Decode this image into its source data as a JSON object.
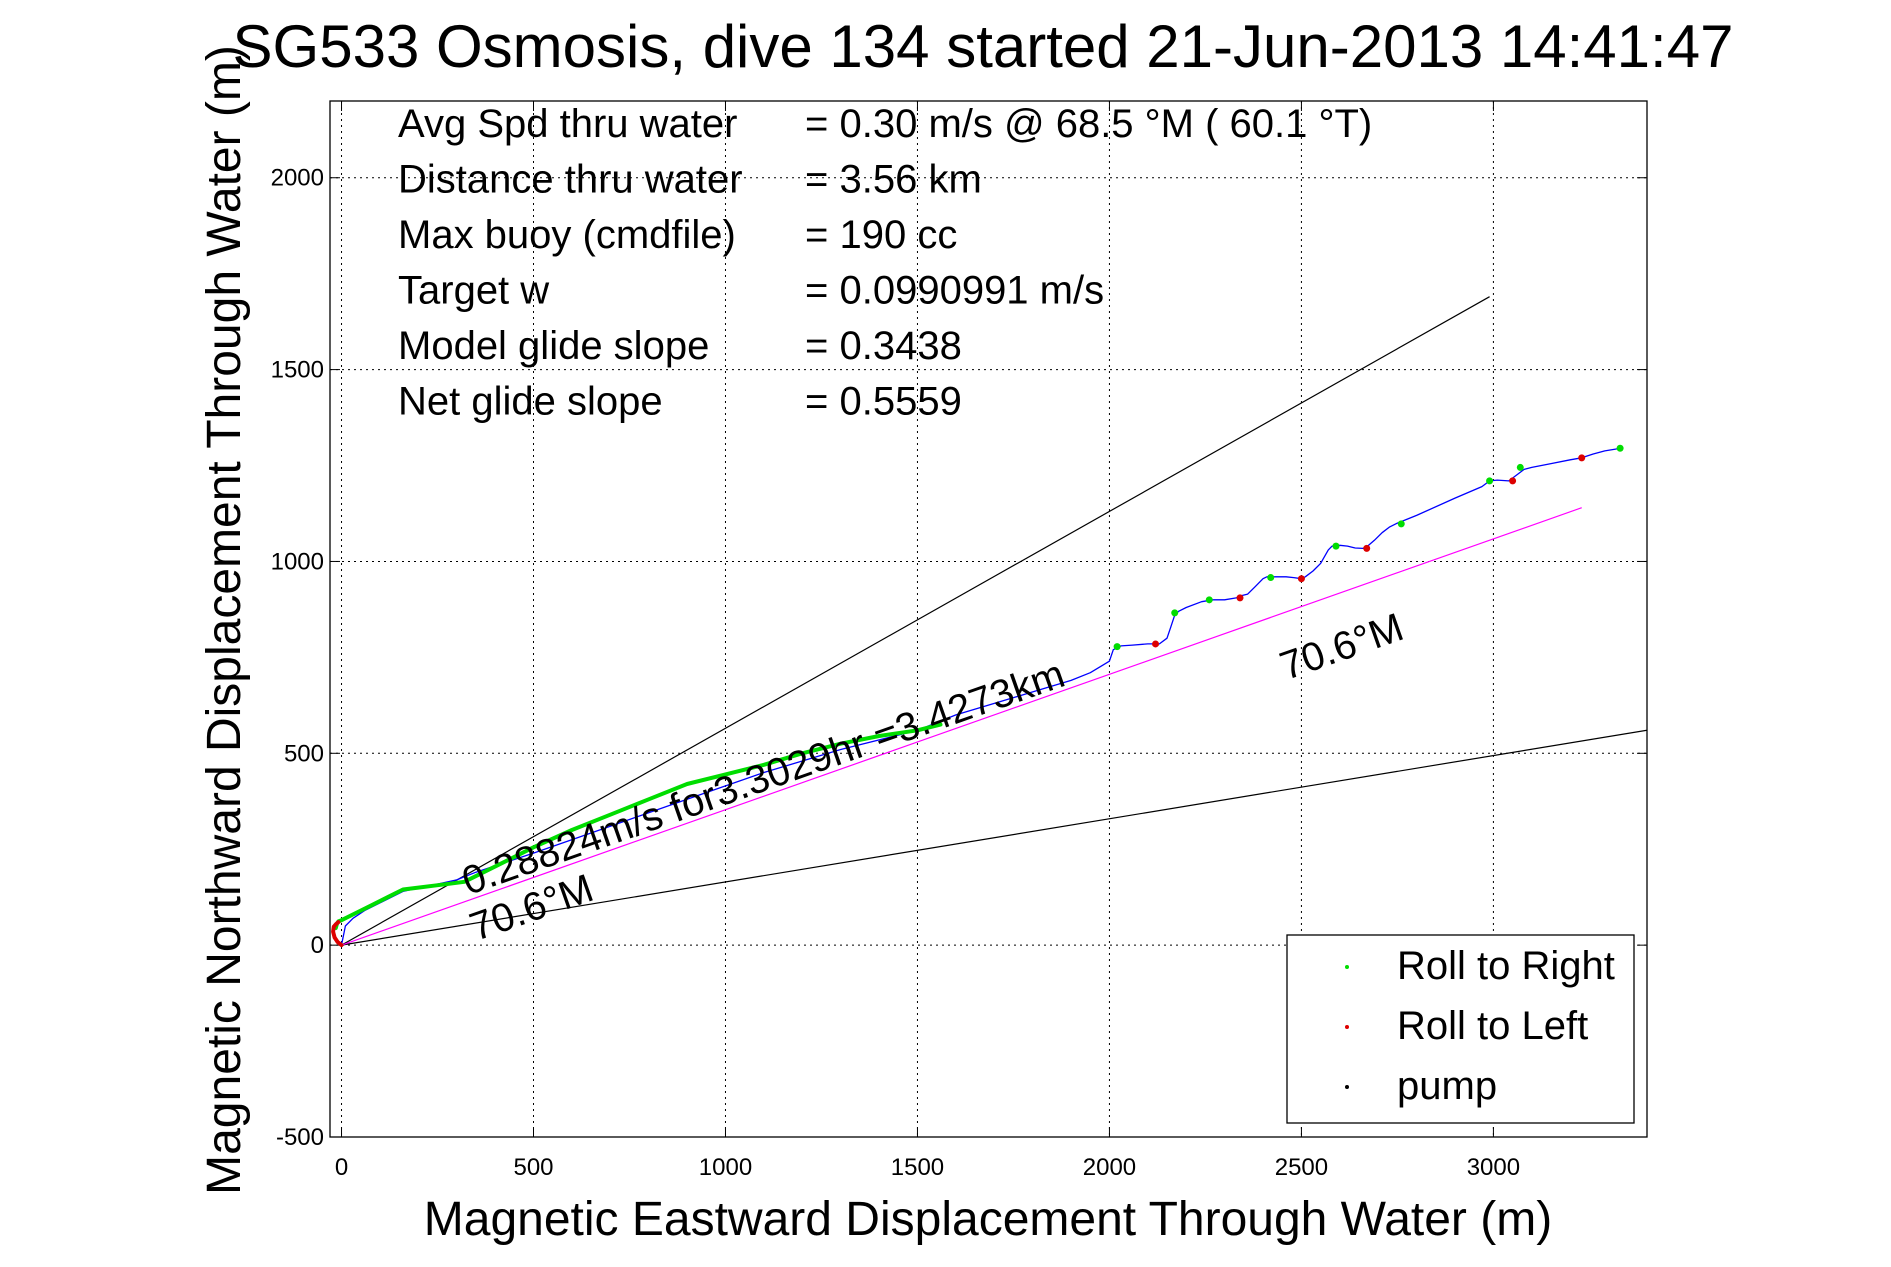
{
  "chart_data": {
    "type": "line",
    "title": "SG533 Osmosis, dive 134 started 21-Jun-2013 14:41:47",
    "xlabel": "Magnetic Eastward Displacement Through Water (m)",
    "ylabel": "Magnetic Northward Displacement Through Water (m)",
    "xlim": [
      -30,
      3400
    ],
    "ylim": [
      -500,
      2200
    ],
    "xticks": [
      0,
      500,
      1000,
      1500,
      2000,
      2500,
      3000
    ],
    "yticks": [
      -500,
      0,
      500,
      1000,
      1500,
      2000
    ],
    "xtick_labels": [
      "0",
      "500",
      "1000",
      "1500",
      "2000",
      "2500",
      "3000"
    ],
    "ytick_labels": [
      "-500",
      "0",
      "500",
      "1000",
      "1500",
      "2000"
    ],
    "grid": true,
    "legend_position": "bottom-right",
    "info_lines": [
      {
        "label": "Avg Spd thru water",
        "value": "=  0.30 m/s @  68.5 °M ( 60.1 °T)"
      },
      {
        "label": "Distance thru water",
        "value": "=  3.56 km"
      },
      {
        "label": "Max buoy (cmdfile)",
        "value": "= 190 cc"
      },
      {
        "label": "Target w",
        "value": "= 0.0990991 m/s"
      },
      {
        "label": "Model glide slope",
        "value": "= 0.3438"
      },
      {
        "label": "Net glide slope",
        "value": "= 0.5559"
      }
    ],
    "annotations": {
      "speed_label": "0.28824m/s for3.3029hr =3.4273km",
      "heading_label_upper": "70.6°M",
      "heading_label_lower": "70.6°M"
    },
    "legend": [
      {
        "label": "Roll to Right",
        "color": "#00dd00"
      },
      {
        "label": "Roll to Left",
        "color": "#dd0000"
      },
      {
        "label": "pump",
        "color": "#000000"
      }
    ],
    "reference_lines": [
      {
        "x": [
          0,
          2990
        ],
        "y": [
          0,
          1690
        ],
        "color": "#000000"
      },
      {
        "x": [
          0,
          3400
        ],
        "y": [
          0,
          560
        ],
        "color": "#000000"
      },
      {
        "x": [
          0,
          3230
        ],
        "y": [
          0,
          1140
        ],
        "color": "#ff00ff"
      }
    ],
    "series": [
      {
        "color": "#0000ff",
        "x": [
          0,
          10,
          30,
          60,
          100,
          160,
          230,
          300,
          350,
          500,
          700,
          900,
          1100,
          1300,
          1500,
          1600,
          1700,
          1800,
          1900,
          1950,
          2000,
          2010,
          2030,
          2060,
          2100,
          2130,
          2150,
          2160,
          2170,
          2180,
          2200,
          2240,
          2270,
          2300,
          2330,
          2340,
          2360,
          2380,
          2400,
          2410,
          2420,
          2460,
          2480,
          2500,
          2510,
          2530,
          2550,
          2570,
          2580,
          2600,
          2620,
          2640,
          2660,
          2670,
          2690,
          2710,
          2730,
          2750,
          2800,
          2900,
          2970,
          2990,
          3010,
          3040,
          3060,
          3080,
          3100,
          3150,
          3200,
          3230,
          3260,
          3290,
          3320,
          3330
        ],
        "y": [
          0,
          50,
          70,
          90,
          110,
          140,
          155,
          170,
          190,
          240,
          310,
          380,
          450,
          510,
          560,
          600,
          630,
          660,
          690,
          710,
          740,
          770,
          780,
          782,
          785,
          785,
          800,
          830,
          860,
          870,
          880,
          895,
          900,
          900,
          905,
          910,
          915,
          935,
          955,
          960,
          960,
          960,
          958,
          955,
          960,
          975,
          995,
          1030,
          1040,
          1042,
          1040,
          1035,
          1034,
          1038,
          1055,
          1075,
          1090,
          1100,
          1120,
          1165,
          1195,
          1210,
          1212,
          1210,
          1225,
          1240,
          1245,
          1255,
          1265,
          1270,
          1280,
          1288,
          1293,
          1295
        ]
      },
      {
        "color": "#00dd00",
        "x": [
          -15,
          -12,
          -8,
          0,
          40,
          80,
          120,
          160,
          200,
          240,
          280,
          320,
          360,
          420,
          500,
          600,
          700,
          800,
          900,
          1000,
          1100,
          1200,
          1300,
          1400,
          1500,
          1560
        ],
        "y": [
          45,
          55,
          62,
          65,
          85,
          105,
          125,
          145,
          150,
          155,
          160,
          165,
          185,
          215,
          255,
          300,
          340,
          380,
          420,
          445,
          470,
          500,
          525,
          545,
          560,
          575
        ]
      },
      {
        "color": "#dd0000",
        "x": [
          0,
          -10,
          -18,
          -22,
          -20,
          -14,
          -8
        ],
        "y": [
          0,
          8,
          20,
          35,
          48,
          55,
          60
        ]
      }
    ],
    "markers_right": {
      "x": [
        2020,
        2170,
        2260,
        2420,
        2590,
        2760,
        2990,
        3070,
        3330
      ],
      "y": [
        778,
        866,
        900,
        958,
        1040,
        1098,
        1210,
        1245,
        1295
      ]
    },
    "markers_left": {
      "x": [
        2120,
        2340,
        2500,
        2670,
        3050,
        3230
      ],
      "y": [
        785,
        905,
        955,
        1034,
        1210,
        1270
      ]
    }
  }
}
